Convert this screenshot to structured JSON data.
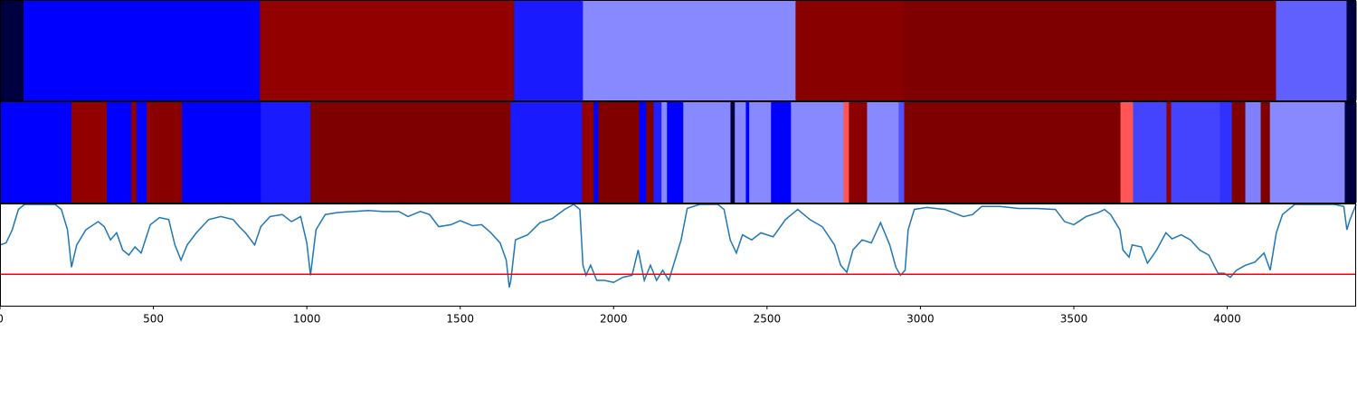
{
  "chart_data": {
    "type": "segmentation",
    "xlim": [
      0,
      4420
    ],
    "xticks": [
      0,
      500,
      1000,
      1500,
      2000,
      2500,
      3000,
      3500,
      4000
    ],
    "tracks": [
      {
        "segments": [
          {
            "start": 0,
            "end": 77,
            "color": "#000040"
          },
          {
            "start": 77,
            "end": 847,
            "color": "#0000ff"
          },
          {
            "start": 847,
            "end": 1676,
            "color": "#920000"
          },
          {
            "start": 1676,
            "end": 1900,
            "color": "#1a1aff"
          },
          {
            "start": 1900,
            "end": 2593,
            "color": "#8888ff"
          },
          {
            "start": 2593,
            "end": 2944,
            "color": "#880000"
          },
          {
            "start": 2944,
            "end": 4159,
            "color": "#7f0000"
          },
          {
            "start": 4159,
            "end": 4389,
            "color": "#6060ff"
          },
          {
            "start": 4389,
            "end": 4420,
            "color": "#000040"
          }
        ]
      },
      {
        "segments": [
          {
            "start": 0,
            "end": 233,
            "color": "#0000ff"
          },
          {
            "start": 233,
            "end": 348,
            "color": "#920000"
          },
          {
            "start": 348,
            "end": 428,
            "color": "#0000ff"
          },
          {
            "start": 428,
            "end": 445,
            "color": "#920000"
          },
          {
            "start": 445,
            "end": 478,
            "color": "#0000ff"
          },
          {
            "start": 478,
            "end": 490,
            "color": "#920000"
          },
          {
            "start": 490,
            "end": 593,
            "color": "#880000"
          },
          {
            "start": 593,
            "end": 850,
            "color": "#0000ff"
          },
          {
            "start": 850,
            "end": 1012,
            "color": "#1a1aff"
          },
          {
            "start": 1012,
            "end": 1664,
            "color": "#7f0000"
          },
          {
            "start": 1664,
            "end": 1897,
            "color": "#1a1aff"
          },
          {
            "start": 1897,
            "end": 1935,
            "color": "#920000"
          },
          {
            "start": 1935,
            "end": 1950,
            "color": "#0000ff"
          },
          {
            "start": 1950,
            "end": 2083,
            "color": "#800000"
          },
          {
            "start": 2083,
            "end": 2106,
            "color": "#0000ff"
          },
          {
            "start": 2106,
            "end": 2130,
            "color": "#800000"
          },
          {
            "start": 2130,
            "end": 2156,
            "color": "#2020ff"
          },
          {
            "start": 2156,
            "end": 2174,
            "color": "#8888ff"
          },
          {
            "start": 2174,
            "end": 2227,
            "color": "#0000ff"
          },
          {
            "start": 2227,
            "end": 2381,
            "color": "#8888ff"
          },
          {
            "start": 2381,
            "end": 2395,
            "color": "#000040"
          },
          {
            "start": 2395,
            "end": 2431,
            "color": "#8888ff"
          },
          {
            "start": 2431,
            "end": 2442,
            "color": "#0000ff"
          },
          {
            "start": 2442,
            "end": 2513,
            "color": "#8888ff"
          },
          {
            "start": 2513,
            "end": 2578,
            "color": "#0000ff"
          },
          {
            "start": 2578,
            "end": 2749,
            "color": "#8888ff"
          },
          {
            "start": 2749,
            "end": 2767,
            "color": "#ff5555"
          },
          {
            "start": 2767,
            "end": 2826,
            "color": "#8b0000"
          },
          {
            "start": 2826,
            "end": 2929,
            "color": "#8888ff"
          },
          {
            "start": 2929,
            "end": 2947,
            "color": "#5050ff"
          },
          {
            "start": 2947,
            "end": 3652,
            "color": "#7f0000"
          },
          {
            "start": 3652,
            "end": 3693,
            "color": "#ff5555"
          },
          {
            "start": 3693,
            "end": 3802,
            "color": "#4444ff"
          },
          {
            "start": 3802,
            "end": 3817,
            "color": "#900000"
          },
          {
            "start": 3817,
            "end": 3976,
            "color": "#4444ff"
          },
          {
            "start": 3976,
            "end": 4015,
            "color": "#3030ff"
          },
          {
            "start": 4015,
            "end": 4059,
            "color": "#800000"
          },
          {
            "start": 4059,
            "end": 4109,
            "color": "#8080ff"
          },
          {
            "start": 4109,
            "end": 4139,
            "color": "#800000"
          },
          {
            "start": 4139,
            "end": 4383,
            "color": "#8888ff"
          },
          {
            "start": 4383,
            "end": 4420,
            "color": "#000040"
          }
        ]
      }
    ],
    "line": {
      "color": "#1f77b4",
      "ylim": [
        0,
        1
      ],
      "x": [
        0,
        20,
        40,
        60,
        80,
        120,
        180,
        200,
        220,
        233,
        250,
        280,
        320,
        340,
        360,
        380,
        400,
        420,
        440,
        460,
        490,
        520,
        550,
        570,
        590,
        610,
        640,
        680,
        720,
        760,
        780,
        800,
        830,
        850,
        880,
        920,
        950,
        980,
        1000,
        1012,
        1030,
        1060,
        1100,
        1150,
        1200,
        1250,
        1300,
        1330,
        1370,
        1400,
        1430,
        1470,
        1500,
        1540,
        1570,
        1600,
        1630,
        1650,
        1660,
        1665,
        1680,
        1720,
        1760,
        1800,
        1840,
        1870,
        1890,
        1900,
        1910,
        1925,
        1945,
        1970,
        2000,
        2030,
        2060,
        2080,
        2100,
        2120,
        2140,
        2160,
        2180,
        2200,
        2220,
        2240,
        2280,
        2340,
        2360,
        2380,
        2400,
        2420,
        2450,
        2480,
        2520,
        2560,
        2600,
        2640,
        2680,
        2720,
        2740,
        2760,
        2780,
        2810,
        2840,
        2870,
        2900,
        2920,
        2935,
        2950,
        2960,
        2980,
        3020,
        3080,
        3140,
        3170,
        3200,
        3260,
        3320,
        3380,
        3440,
        3470,
        3500,
        3540,
        3580,
        3600,
        3620,
        3650,
        3660,
        3680,
        3690,
        3720,
        3740,
        3770,
        3800,
        3820,
        3850,
        3880,
        3910,
        3940,
        3970,
        3990,
        4010,
        4030,
        4060,
        4090,
        4120,
        4140,
        4160,
        4180,
        4220,
        4300,
        4350,
        4380,
        4390,
        4400,
        4420
      ],
      "values": [
        0.6,
        0.62,
        0.75,
        0.95,
        1.0,
        1.0,
        1.0,
        0.95,
        0.75,
        0.38,
        0.6,
        0.75,
        0.83,
        0.78,
        0.65,
        0.72,
        0.55,
        0.5,
        0.58,
        0.52,
        0.8,
        0.87,
        0.85,
        0.6,
        0.45,
        0.6,
        0.72,
        0.85,
        0.88,
        0.85,
        0.78,
        0.72,
        0.6,
        0.78,
        0.88,
        0.9,
        0.83,
        0.88,
        0.62,
        0.3,
        0.75,
        0.9,
        0.92,
        0.93,
        0.94,
        0.93,
        0.93,
        0.88,
        0.93,
        0.9,
        0.78,
        0.8,
        0.84,
        0.79,
        0.8,
        0.72,
        0.62,
        0.45,
        0.18,
        0.25,
        0.65,
        0.7,
        0.82,
        0.86,
        0.95,
        1.0,
        0.95,
        0.4,
        0.3,
        0.4,
        0.25,
        0.25,
        0.23,
        0.28,
        0.3,
        0.55,
        0.25,
        0.4,
        0.25,
        0.35,
        0.25,
        0.45,
        0.65,
        0.96,
        1.0,
        1.0,
        0.95,
        0.65,
        0.52,
        0.7,
        0.65,
        0.72,
        0.68,
        0.85,
        0.95,
        0.85,
        0.78,
        0.6,
        0.4,
        0.33,
        0.55,
        0.65,
        0.62,
        0.82,
        0.6,
        0.38,
        0.3,
        0.35,
        0.75,
        0.95,
        0.97,
        0.95,
        0.88,
        0.9,
        0.98,
        0.98,
        0.96,
        0.96,
        0.95,
        0.83,
        0.8,
        0.88,
        0.92,
        0.95,
        0.9,
        0.75,
        0.55,
        0.48,
        0.6,
        0.58,
        0.42,
        0.55,
        0.72,
        0.66,
        0.7,
        0.65,
        0.55,
        0.5,
        0.32,
        0.32,
        0.28,
        0.35,
        0.4,
        0.43,
        0.52,
        0.35,
        0.72,
        0.9,
        1.0,
        1.0,
        1.0,
        0.98,
        0.75,
        0.85,
        1.0
      ]
    },
    "threshold": {
      "value": 0.31,
      "color": "#ff0000"
    }
  }
}
